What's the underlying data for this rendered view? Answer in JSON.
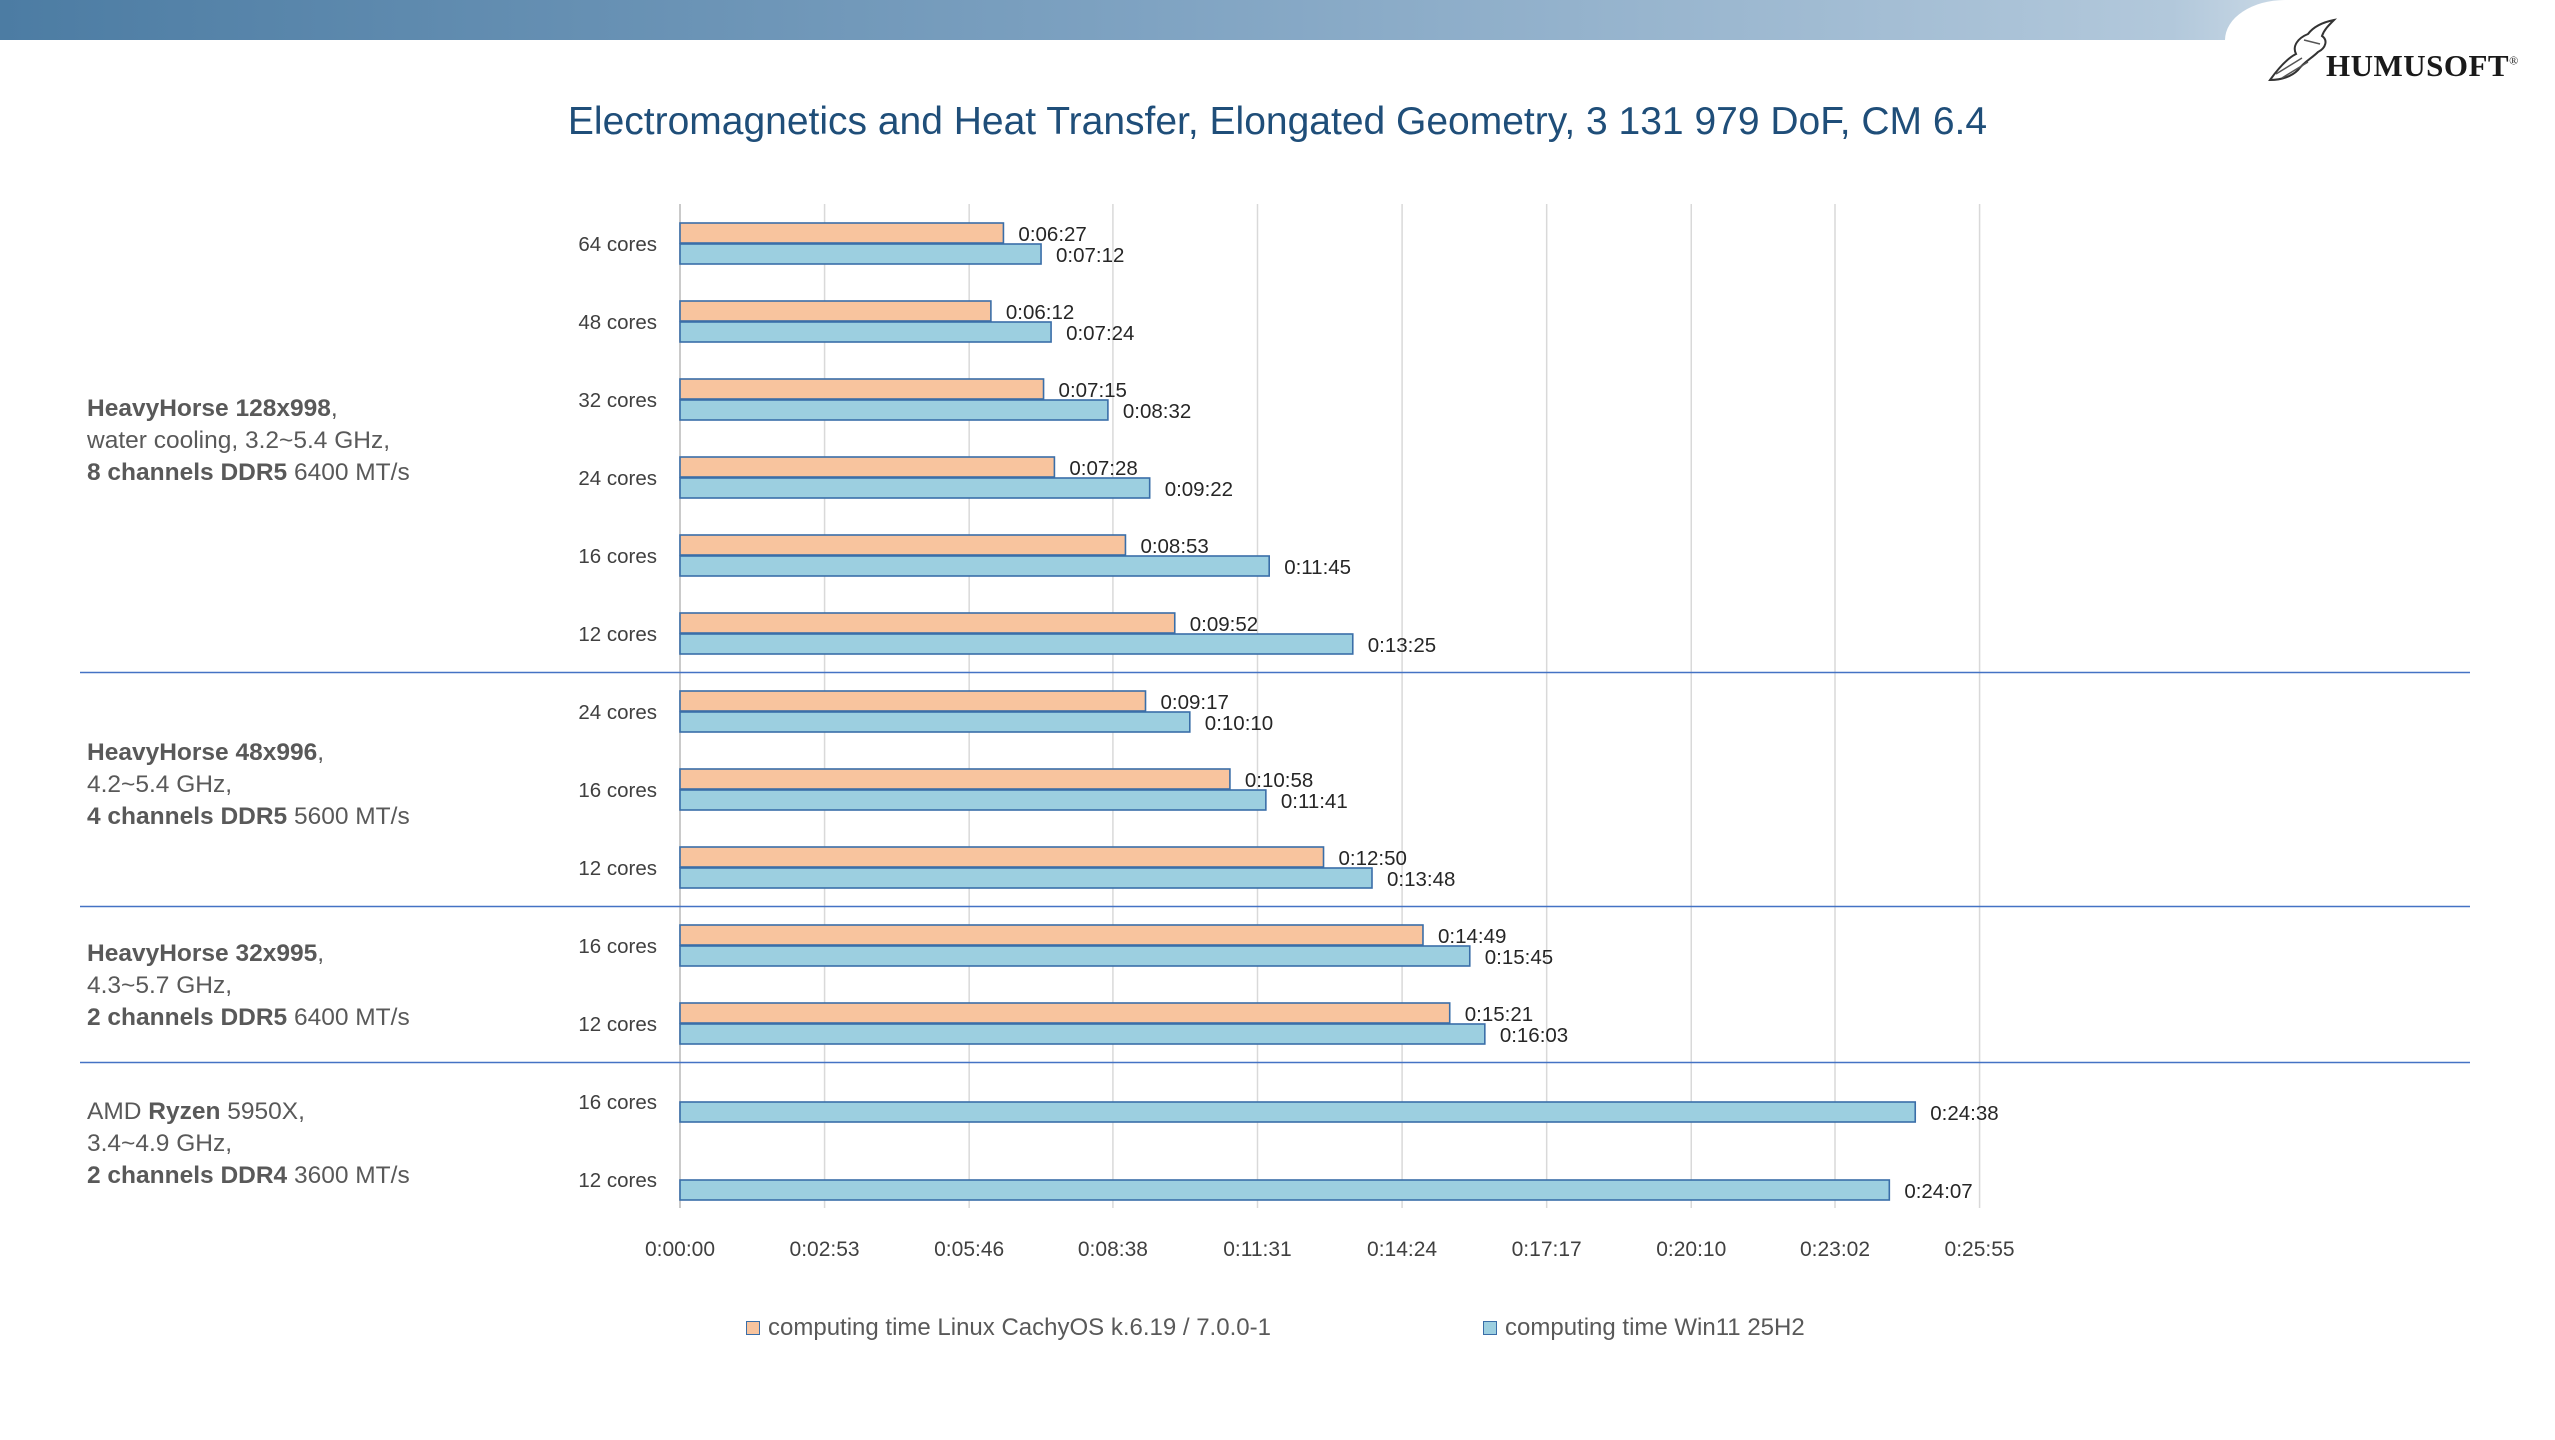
{
  "title": "Electromagnetics and Heat Transfer, Elongated Geometry, 3 131 979 DoF, CM 6.4",
  "logo": {
    "text": "HUMUSOFT",
    "mark": "®"
  },
  "groups": [
    {
      "line1_bold": "HeavyHorse 128x998",
      "line1_rest": ",",
      "line2": "water cooling, 3.2~5.4 GHz,",
      "line3_bold": "8 channels DDR5",
      "line3_rest": " 6400 MT/s"
    },
    {
      "line1_bold": "HeavyHorse 48x996",
      "line1_rest": ",",
      "line2": "4.2~5.4 GHz,",
      "line3_bold": "4 channels DDR5",
      "line3_rest": " 5600 MT/s"
    },
    {
      "line1_bold": "HeavyHorse 32x995",
      "line1_rest": ",",
      "line2": "4.3~5.7 GHz,",
      "line3_bold": "2 channels DDR5",
      "line3_rest": " 6400 MT/s"
    },
    {
      "line1_pre": "AMD ",
      "line1_bold": "Ryzen",
      "line1_rest": " 5950X,",
      "line2": "3.4~4.9 GHz,",
      "line3_bold": "2 channels DDR4",
      "line3_rest": " 3600 MT/s"
    }
  ],
  "chart_data": {
    "type": "bar",
    "orientation": "horizontal",
    "categories": [
      "64 cores",
      "48 cores",
      "32 cores",
      "24 cores",
      "16 cores",
      "12 cores",
      "24 cores",
      "16 cores",
      "12 cores",
      "16 cores",
      "12 cores",
      "16 cores",
      "12 cores"
    ],
    "category_group": [
      0,
      0,
      0,
      0,
      0,
      0,
      1,
      1,
      1,
      2,
      2,
      3,
      3
    ],
    "series": [
      {
        "name": "computing time Linux CachyOS k.6.19 / 7.0.0-1",
        "color": "#f8c49e",
        "values": [
          387,
          372,
          435,
          448,
          533,
          592,
          557,
          658,
          770,
          889,
          921,
          null,
          null
        ],
        "labels": [
          "0:06:27",
          "0:06:12",
          "0:07:15",
          "0:07:28",
          "0:08:53",
          "0:09:52",
          "0:09:17",
          "0:10:58",
          "0:12:50",
          "0:14:49",
          "0:15:21",
          "",
          ""
        ]
      },
      {
        "name": "computing time Win11 25H2",
        "color": "#9ccfe0",
        "values": [
          432,
          444,
          512,
          562,
          705,
          805,
          610,
          701,
          828,
          945,
          963,
          1478,
          1447
        ],
        "labels": [
          "0:07:12",
          "0:07:24",
          "0:08:32",
          "0:09:22",
          "0:11:45",
          "0:13:25",
          "0:10:10",
          "0:11:41",
          "0:13:48",
          "0:15:45",
          "0:16:03",
          "0:24:38",
          "0:24:07"
        ]
      }
    ],
    "xaxis": {
      "ticks": [
        0,
        173,
        346,
        518,
        691,
        864,
        1037,
        1210,
        1382,
        1555
      ],
      "tick_labels": [
        "0:00:00",
        "0:02:53",
        "0:05:46",
        "0:08:38",
        "0:11:31",
        "0:14:24",
        "0:17:17",
        "0:20:10",
        "0:23:02",
        "0:25:55"
      ],
      "xlim": [
        0,
        1555
      ]
    },
    "grid": true,
    "legend": "bottom"
  },
  "colors": {
    "bar_edge": "#3a6ea8",
    "separator": "#4472c4",
    "grid": "#d9d9d9",
    "title": "#1f4e79"
  }
}
